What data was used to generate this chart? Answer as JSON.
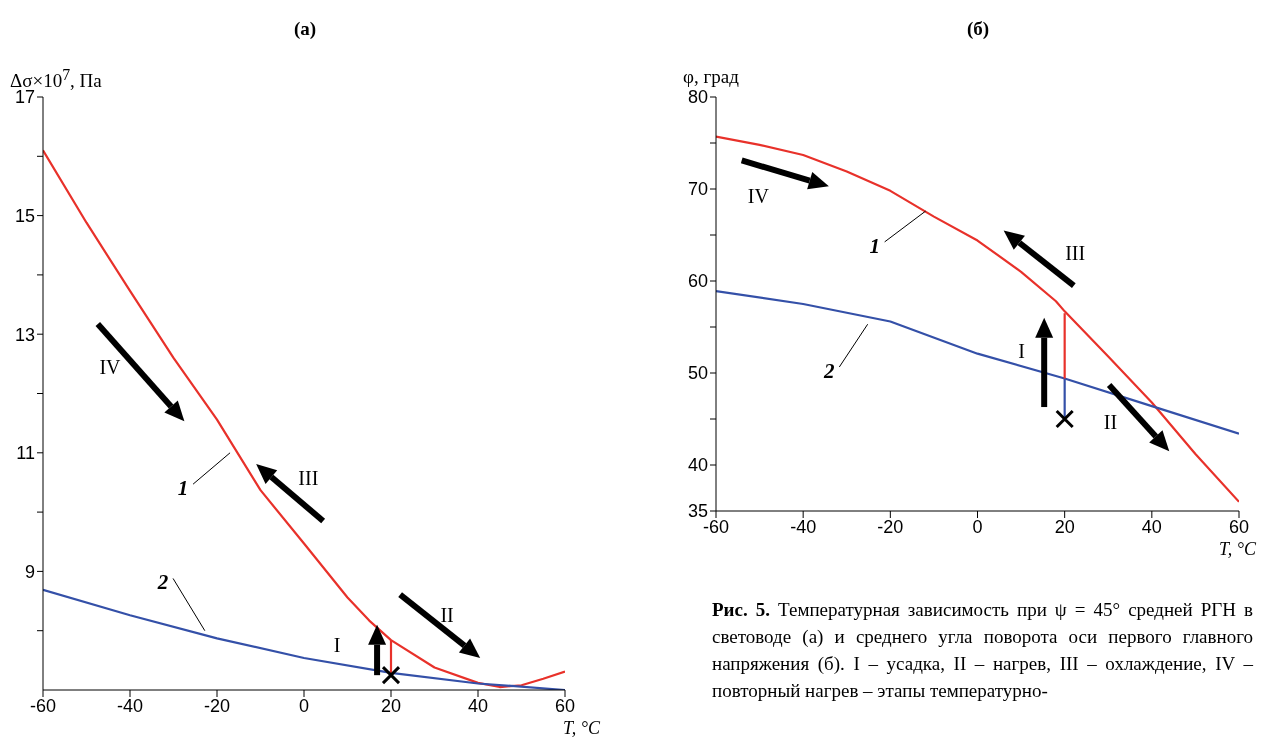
{
  "chart_data": [
    {
      "type": "line",
      "title": "(а)",
      "ylabel": "Δσ×10$^{7}$, Па",
      "xlabel": "T, °C",
      "xlim": [
        -60,
        60
      ],
      "xticks": [
        -60,
        -40,
        -20,
        0,
        20,
        40,
        60
      ],
      "ylim": [
        7,
        17
      ],
      "yticks": [
        {
          "value": 8,
          "label": null
        },
        9,
        {
          "value": 10,
          "label": null
        },
        11,
        {
          "value": 12,
          "label": null
        },
        13,
        {
          "value": 14,
          "label": null
        },
        15,
        {
          "value": 16,
          "label": null
        },
        17
      ],
      "series": [
        {
          "name": "1",
          "color": "#e8312a",
          "x": [
            -60,
            -50,
            -40,
            -30,
            -20,
            -10,
            0,
            10,
            15,
            20,
            30,
            40,
            45,
            50,
            55,
            60
          ],
          "values": [
            16.1,
            14.88,
            13.73,
            12.6,
            11.56,
            10.37,
            9.47,
            8.56,
            8.17,
            7.84,
            7.38,
            7.12,
            7.05,
            7.08,
            7.19,
            7.31
          ]
        },
        {
          "name": "2",
          "color": "#3450a8",
          "x": [
            -60,
            -40,
            -20,
            0,
            20,
            40,
            60
          ],
          "values": [
            8.69,
            8.26,
            7.87,
            7.54,
            7.29,
            7.11,
            7.0
          ]
        },
        {
          "color": "#e8312a",
          "x": [
            20,
            20
          ],
          "values": [
            7.25,
            7.84
          ]
        },
        {
          "type": "scatter",
          "marker": "cross",
          "color": "#000000",
          "x": [
            20
          ],
          "values": [
            7.25
          ]
        }
      ],
      "annotations": [
        "IV",
        "III",
        "II",
        "I"
      ]
    },
    {
      "type": "line",
      "title": "(б)",
      "ylabel": "φ, град",
      "xlabel": "T, °C",
      "xlim": [
        -60,
        60
      ],
      "xticks": [
        -60,
        -40,
        -20,
        0,
        20,
        40,
        60
      ],
      "ylim": [
        35,
        80
      ],
      "yticks": [
        35,
        40,
        {
          "value": 45,
          "label": null
        },
        50,
        {
          "value": 55,
          "label": null
        },
        60,
        {
          "value": 65,
          "label": null
        },
        70,
        {
          "value": 75,
          "label": null
        },
        80
      ],
      "series": [
        {
          "name": "1",
          "color": "#e8312a",
          "x": [
            -60,
            -50,
            -40,
            -30,
            -20,
            -10,
            0,
            10,
            18,
            20,
            30,
            40,
            50,
            60
          ],
          "values": [
            75.7,
            74.8,
            73.7,
            71.9,
            69.8,
            67.0,
            64.4,
            61.0,
            57.8,
            56.7,
            51.8,
            46.8,
            41.2,
            36.0
          ]
        },
        {
          "name": "2",
          "color": "#3450a8",
          "x": [
            -60,
            -40,
            -20,
            0,
            20,
            40,
            60
          ],
          "values": [
            58.9,
            57.5,
            55.6,
            52.1,
            49.4,
            46.4,
            43.4
          ]
        },
        {
          "color": "#3450a8",
          "x": [
            20,
            20
          ],
          "values": [
            45.0,
            49.4
          ]
        },
        {
          "color": "#e8312a",
          "x": [
            20,
            20
          ],
          "values": [
            49.4,
            56.5
          ]
        },
        {
          "type": "scatter",
          "marker": "cross",
          "color": "#000000",
          "x": [
            20
          ],
          "values": [
            45.0
          ]
        }
      ],
      "annotations": [
        "IV",
        "III",
        "II",
        "I"
      ]
    },
    {
      "type": "other",
      "annotations": [
        "Рис. 5.",
        "Температурная зависимость при ψ = 45° средней РГН в световоде (а) и среднего угла поворота оси первого главного напряжения (б). I – усадка, II – нагрев, III – охлаждение, IV – повторный нагрев – этапы температурно-"
      ]
    }
  ]
}
